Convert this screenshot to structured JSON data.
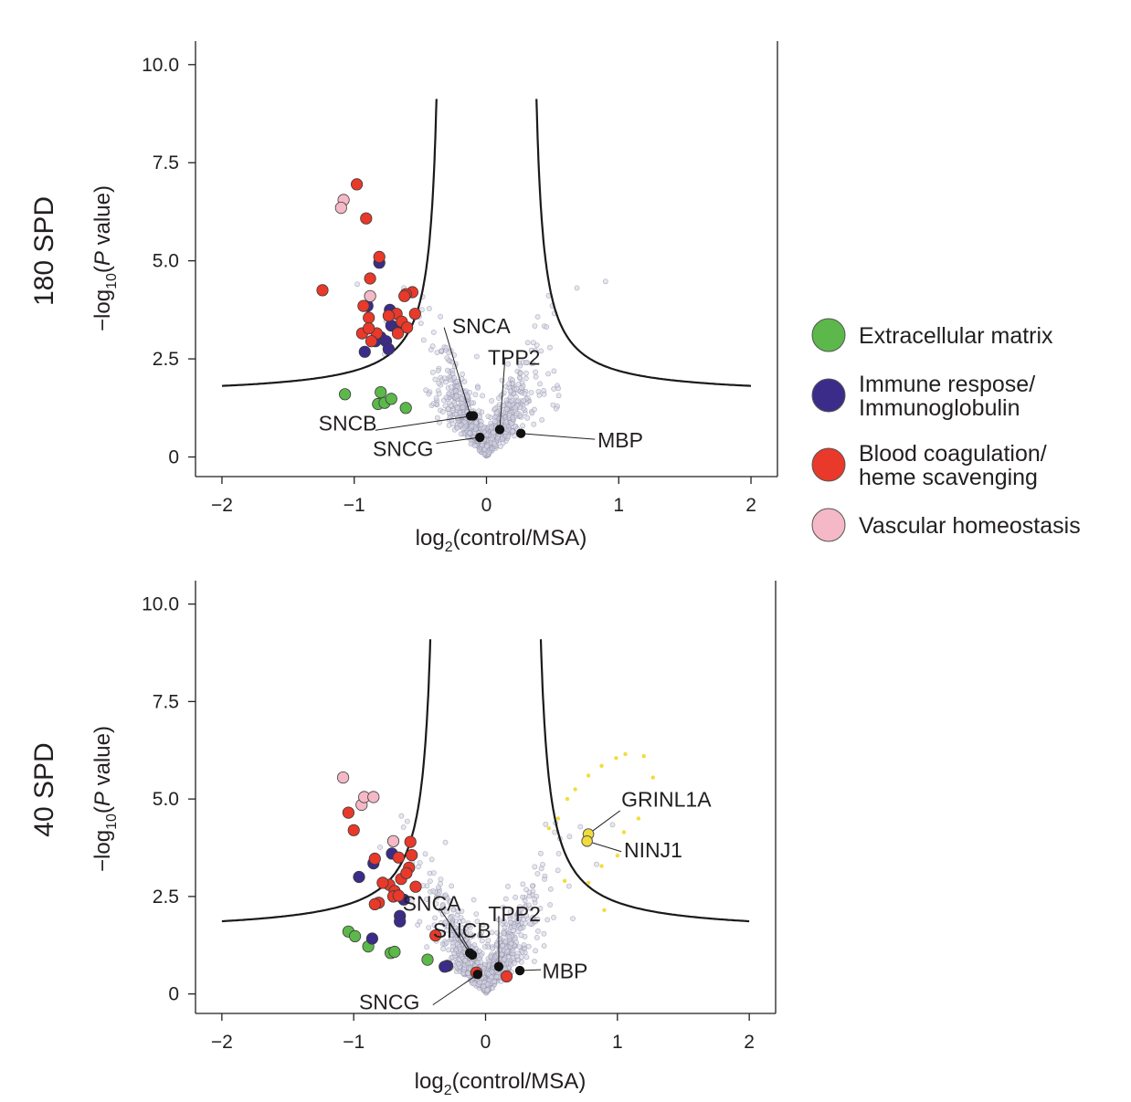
{
  "colors": {
    "background": "#d6d6e4",
    "background_stroke": "#9090a8",
    "Extracellular matrix": "#5cb84a",
    "Immune respose/ Immunoglobulin": "#3b2c8a",
    "Blood coagulation/ heme scavenging": "#e8392a",
    "Vascular homeostasis": "#f4b8c6",
    "upregulated": "#f2dc3c",
    "label_point": "#111111",
    "threshold": "#1a1a1a"
  },
  "legend": [
    {
      "name": "extracellular",
      "label": "Extracellular matrix",
      "color": "#5cb84a"
    },
    {
      "name": "immune",
      "label_line1": "Immune respose/",
      "label_line2": "Immunoglobulin",
      "color": "#3b2c8a"
    },
    {
      "name": "blood",
      "label_line1": "Blood coagulation/",
      "label_line2": "heme scavenging",
      "color": "#e8392a"
    },
    {
      "name": "vascular",
      "label": "Vascular homeostasis",
      "color": "#f4b8c6"
    }
  ],
  "chart_data": [
    {
      "type": "scatter",
      "title": "180 SPD",
      "xlabel_main": "log",
      "xlabel_sub": "2",
      "xlabel_rest": "(control/MSA)",
      "ylabel_prefix": "−log",
      "ylabel_sub": "10",
      "ylabel_open": "(",
      "ylabel_italic": "P",
      "ylabel_rest": " value)",
      "xlim": [
        -2.2,
        2.2
      ],
      "ylim": [
        -0.5,
        10.6
      ],
      "xticks": [
        -2,
        -1,
        0,
        1,
        2
      ],
      "xtick_labels": [
        "−2",
        "−1",
        "0",
        "1",
        "2"
      ],
      "yticks": [
        0,
        2.5,
        5.0,
        7.5,
        10.0
      ],
      "ytick_labels": [
        "0",
        "2.5",
        "5.0",
        "7.5",
        "10.0"
      ],
      "threshold": {
        "s0": 0.32,
        "c": 0.44
      },
      "background_seed": 11,
      "background_count": 900,
      "groups": {
        "Extracellular matrix": [
          [
            -1.07,
            1.6
          ],
          [
            -0.8,
            1.65
          ],
          [
            -0.82,
            1.35
          ],
          [
            -0.77,
            1.38
          ],
          [
            -0.72,
            1.48
          ],
          [
            -0.61,
            1.25
          ]
        ],
        "Immune respose/ Immunoglobulin": [
          [
            -0.81,
            4.95
          ],
          [
            -0.9,
            3.85
          ],
          [
            -0.73,
            3.75
          ],
          [
            -0.72,
            3.35
          ],
          [
            -0.66,
            3.3
          ],
          [
            -0.8,
            3.05
          ],
          [
            -0.76,
            2.95
          ],
          [
            -0.84,
            2.95
          ],
          [
            -0.74,
            2.75
          ],
          [
            -0.92,
            2.68
          ]
        ],
        "Blood coagulation/ heme scavenging": [
          [
            -0.98,
            6.95
          ],
          [
            -0.91,
            6.08
          ],
          [
            -0.81,
            5.1
          ],
          [
            -0.88,
            4.55
          ],
          [
            -1.24,
            4.25
          ],
          [
            -0.56,
            4.2
          ],
          [
            -0.61,
            4.15
          ],
          [
            -0.62,
            4.1
          ],
          [
            -0.93,
            3.85
          ],
          [
            -0.68,
            3.65
          ],
          [
            -0.54,
            3.65
          ],
          [
            -0.74,
            3.6
          ],
          [
            -0.89,
            3.55
          ],
          [
            -0.64,
            3.45
          ],
          [
            -0.6,
            3.3
          ],
          [
            -0.83,
            3.15
          ],
          [
            -0.94,
            3.15
          ],
          [
            -0.67,
            3.15
          ],
          [
            -0.89,
            3.28
          ],
          [
            -0.87,
            2.95
          ]
        ],
        "Vascular homeostasis": [
          [
            -1.08,
            6.55
          ],
          [
            -1.1,
            6.35
          ],
          [
            -0.88,
            4.1
          ]
        ]
      },
      "labeled_points": [
        {
          "label": "SNCA",
          "x": -0.12,
          "y": 1.05,
          "tx": -0.26,
          "ty": 3.15,
          "anchor": "start",
          "lx": -0.32,
          "ly": 3.3
        },
        {
          "label": "TPP2",
          "x": 0.1,
          "y": 0.7,
          "tx": 0.01,
          "ty": 2.35,
          "anchor": "start",
          "lx": 0.14,
          "ly": 2.5
        },
        {
          "label": "SNCB",
          "x": -0.1,
          "y": 1.05,
          "tx": -1.27,
          "ty": 0.68,
          "anchor": "start",
          "lx": -0.84,
          "ly": 0.68
        },
        {
          "label": "SNCG",
          "x": -0.05,
          "y": 0.5,
          "tx": -0.86,
          "ty": 0.02,
          "anchor": "start",
          "lx": -0.38,
          "ly": 0.35
        },
        {
          "label": "MBP",
          "x": 0.26,
          "y": 0.6,
          "tx": 0.84,
          "ty": 0.25,
          "anchor": "start",
          "lx": 0.82,
          "ly": 0.45
        }
      ],
      "upregulated": []
    },
    {
      "type": "scatter",
      "title": "40 SPD",
      "xlabel_main": "log",
      "xlabel_sub": "2",
      "xlabel_rest": "(control/MSA)",
      "ylabel_prefix": "−log",
      "ylabel_sub": "10",
      "ylabel_open": "(",
      "ylabel_italic": "P",
      "ylabel_rest": " value)",
      "xlim": [
        -2.2,
        2.2
      ],
      "ylim": [
        -0.5,
        10.6
      ],
      "xticks": [
        -2,
        -1,
        0,
        1,
        2
      ],
      "xtick_labels": [
        "−2",
        "−1",
        "0",
        "1",
        "2"
      ],
      "yticks": [
        0,
        2.5,
        5.0,
        7.5,
        10.0
      ],
      "ytick_labels": [
        "0",
        "2.5",
        "5.0",
        "7.5",
        "10.0"
      ],
      "threshold": {
        "s0": 0.35,
        "c": 0.52
      },
      "background_seed": 29,
      "background_count": 1000,
      "groups": {
        "Extracellular matrix": [
          [
            -1.04,
            1.6
          ],
          [
            -0.99,
            1.48
          ],
          [
            -0.89,
            1.22
          ],
          [
            -0.72,
            1.05
          ],
          [
            -0.69,
            1.08
          ],
          [
            -0.44,
            0.88
          ]
        ],
        "Immune respose/ Immunoglobulin": [
          [
            -0.71,
            3.6
          ],
          [
            -0.85,
            3.35
          ],
          [
            -0.96,
            3.0
          ],
          [
            -0.62,
            2.42
          ],
          [
            -0.65,
            2.0
          ],
          [
            -0.86,
            1.42
          ],
          [
            -0.65,
            1.86
          ],
          [
            -0.29,
            0.72
          ],
          [
            -0.31,
            0.7
          ]
        ],
        "Blood coagulation/ heme scavenging": [
          [
            -1.04,
            4.65
          ],
          [
            -1.0,
            4.2
          ],
          [
            -0.57,
            3.9
          ],
          [
            -0.56,
            3.56
          ],
          [
            -0.84,
            3.47
          ],
          [
            -0.66,
            3.5
          ],
          [
            -0.58,
            3.24
          ],
          [
            -0.64,
            2.95
          ],
          [
            -0.6,
            3.1
          ],
          [
            -0.53,
            2.75
          ],
          [
            -0.73,
            2.8
          ],
          [
            -0.69,
            2.64
          ],
          [
            -0.7,
            2.5
          ],
          [
            -0.78,
            2.85
          ],
          [
            -0.81,
            2.34
          ],
          [
            -0.84,
            2.3
          ],
          [
            -0.66,
            2.52
          ],
          [
            -0.38,
            1.5
          ],
          [
            -0.07,
            0.55
          ],
          [
            0.16,
            0.45
          ]
        ],
        "Vascular homeostasis": [
          [
            -1.08,
            5.55
          ],
          [
            -0.94,
            4.85
          ],
          [
            -0.92,
            5.05
          ],
          [
            -0.85,
            5.05
          ],
          [
            -0.7,
            3.92
          ]
        ]
      },
      "labeled_points": [
        {
          "label": "SNCA",
          "x": -0.12,
          "y": 1.05,
          "tx": -0.63,
          "ty": 2.14,
          "anchor": "start",
          "lx": -0.35,
          "ly": 2.2
        },
        {
          "label": "TPP2",
          "x": 0.1,
          "y": 0.7,
          "tx": 0.02,
          "ty": 1.86,
          "anchor": "start",
          "lx": 0.1,
          "ly": 2.0
        },
        {
          "label": "SNCB",
          "x": -0.1,
          "y": 1.0,
          "tx": -0.4,
          "ty": 1.44,
          "anchor": "start",
          "lx": -0.2,
          "ly": 1.6
        },
        {
          "label": "SNCG",
          "x": -0.06,
          "y": 0.5,
          "tx": -0.96,
          "ty": -0.4,
          "anchor": "start",
          "lx": -0.4,
          "ly": -0.28
        },
        {
          "label": "MBP",
          "x": 0.26,
          "y": 0.6,
          "tx": 0.43,
          "ty": 0.4,
          "anchor": "start",
          "lx": 0.42,
          "ly": 0.62
        }
      ],
      "upregulated": [
        {
          "label": "GRINL1A",
          "x": 0.78,
          "y": 4.1,
          "tx": 1.03,
          "ty": 4.8,
          "anchor": "start",
          "lx": 1.02,
          "ly": 4.7
        },
        {
          "label": "NINJ1",
          "x": 0.77,
          "y": 3.92,
          "tx": 1.05,
          "ty": 3.5,
          "anchor": "start",
          "lx": 1.03,
          "ly": 3.65
        }
      ],
      "upregulated_small": [
        [
          0.55,
          4.5
        ],
        [
          0.62,
          5.0
        ],
        [
          0.68,
          5.25
        ],
        [
          0.78,
          5.6
        ],
        [
          0.88,
          5.85
        ],
        [
          0.99,
          6.05
        ],
        [
          1.06,
          6.15
        ],
        [
          1.2,
          6.1
        ],
        [
          1.27,
          5.55
        ],
        [
          1.16,
          4.5
        ],
        [
          1.05,
          4.15
        ],
        [
          1.0,
          3.55
        ],
        [
          0.88,
          3.28
        ],
        [
          0.78,
          2.85
        ],
        [
          0.9,
          2.15
        ],
        [
          0.6,
          2.9
        ],
        [
          0.48,
          4.25
        ]
      ]
    }
  ]
}
